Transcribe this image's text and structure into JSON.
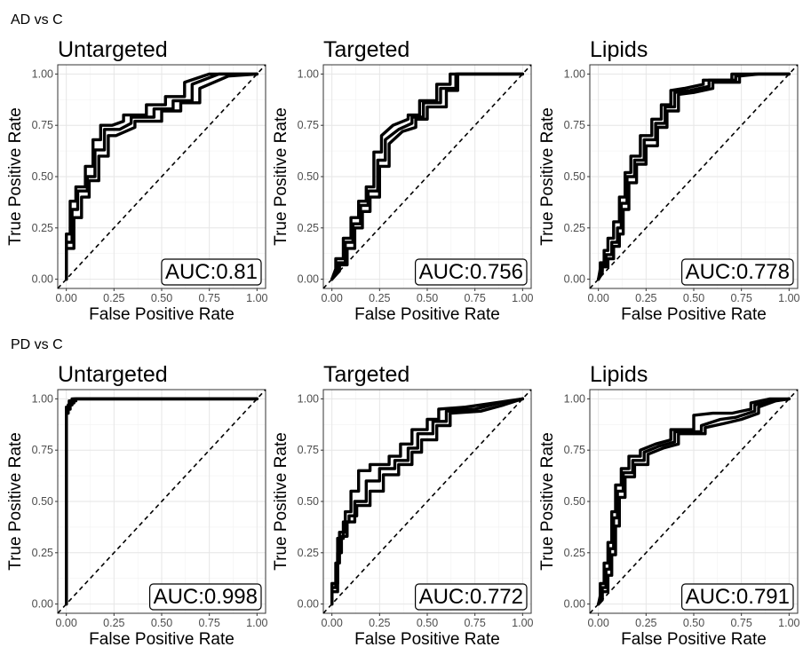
{
  "figure": {
    "row_titles": [
      "AD vs C",
      "PD vs C"
    ]
  },
  "chart_data": [
    {
      "type": "line",
      "row": "AD vs C",
      "title": "Untargeted",
      "xlabel": "False Positive Rate",
      "ylabel": "True Positive Rate",
      "xlim": [
        0,
        1
      ],
      "ylim": [
        0,
        1
      ],
      "x_ticks": [
        "0.00",
        "0.25",
        "0.50",
        "0.75",
        "1.00"
      ],
      "y_ticks": [
        "0.00",
        "0.25",
        "0.50",
        "0.75",
        "1.00"
      ],
      "grid": true,
      "annotation": "AUC:0.81",
      "series": [
        {
          "x": [
            0,
            0,
            0.02,
            0.02,
            0.05,
            0.05,
            0.1,
            0.1,
            0.14,
            0.14,
            0.18,
            0.18,
            0.24,
            0.3,
            0.3,
            0.42,
            0.42,
            0.52,
            0.52,
            0.62,
            0.62,
            0.75,
            1.0
          ],
          "y": [
            0,
            0.22,
            0.22,
            0.38,
            0.38,
            0.45,
            0.45,
            0.55,
            0.55,
            0.68,
            0.68,
            0.75,
            0.75,
            0.77,
            0.8,
            0.8,
            0.85,
            0.85,
            0.89,
            0.89,
            0.96,
            1.0,
            1.0
          ]
        },
        {
          "x": [
            0,
            0,
            0.03,
            0.03,
            0.06,
            0.06,
            0.11,
            0.11,
            0.15,
            0.15,
            0.2,
            0.2,
            0.28,
            0.34,
            0.34,
            0.46,
            0.46,
            0.56,
            0.56,
            0.66,
            0.66,
            0.8,
            1.0
          ],
          "y": [
            0,
            0.18,
            0.18,
            0.34,
            0.34,
            0.43,
            0.43,
            0.5,
            0.5,
            0.63,
            0.63,
            0.73,
            0.73,
            0.76,
            0.79,
            0.79,
            0.83,
            0.83,
            0.87,
            0.87,
            0.95,
            1.0,
            1.0
          ]
        },
        {
          "x": [
            0,
            0,
            0.04,
            0.04,
            0.08,
            0.08,
            0.12,
            0.12,
            0.17,
            0.17,
            0.22,
            0.22,
            0.26,
            0.36,
            0.36,
            0.5,
            0.5,
            0.6,
            0.6,
            0.7,
            0.7,
            0.85,
            1.0
          ],
          "y": [
            0,
            0.15,
            0.15,
            0.3,
            0.3,
            0.4,
            0.4,
            0.48,
            0.48,
            0.6,
            0.6,
            0.7,
            0.7,
            0.74,
            0.77,
            0.77,
            0.82,
            0.82,
            0.86,
            0.86,
            0.93,
            0.99,
            1.0
          ]
        }
      ]
    },
    {
      "type": "line",
      "row": "AD vs C",
      "title": "Targeted",
      "xlabel": "False Positive Rate",
      "ylabel": "True Positive Rate",
      "xlim": [
        0,
        1
      ],
      "ylim": [
        0,
        1
      ],
      "x_ticks": [
        "0.00",
        "0.25",
        "0.50",
        "0.75",
        "1.00"
      ],
      "y_ticks": [
        "0.00",
        "0.25",
        "0.50",
        "0.75",
        "1.00"
      ],
      "grid": true,
      "annotation": "AUC:0.756",
      "series": [
        {
          "x": [
            0,
            0.02,
            0.02,
            0.06,
            0.06,
            0.1,
            0.1,
            0.14,
            0.14,
            0.18,
            0.18,
            0.22,
            0.22,
            0.26,
            0.26,
            0.32,
            0.4,
            0.4,
            0.46,
            0.46,
            0.55,
            0.55,
            0.62,
            0.62,
            1.0
          ],
          "y": [
            0,
            0.05,
            0.1,
            0.1,
            0.2,
            0.2,
            0.3,
            0.3,
            0.38,
            0.38,
            0.45,
            0.45,
            0.62,
            0.62,
            0.7,
            0.75,
            0.78,
            0.8,
            0.8,
            0.87,
            0.87,
            0.95,
            0.95,
            1.0,
            1.0
          ]
        },
        {
          "x": [
            0,
            0.03,
            0.03,
            0.07,
            0.07,
            0.11,
            0.11,
            0.15,
            0.15,
            0.19,
            0.19,
            0.24,
            0.24,
            0.28,
            0.28,
            0.35,
            0.42,
            0.42,
            0.48,
            0.48,
            0.57,
            0.57,
            0.65,
            0.65,
            1.0
          ],
          "y": [
            0,
            0.05,
            0.08,
            0.08,
            0.18,
            0.18,
            0.27,
            0.27,
            0.36,
            0.36,
            0.43,
            0.43,
            0.58,
            0.58,
            0.68,
            0.73,
            0.76,
            0.79,
            0.79,
            0.86,
            0.86,
            0.93,
            0.93,
            1.0,
            1.0
          ]
        },
        {
          "x": [
            0,
            0.04,
            0.04,
            0.08,
            0.08,
            0.12,
            0.12,
            0.16,
            0.16,
            0.2,
            0.2,
            0.25,
            0.25,
            0.3,
            0.3,
            0.37,
            0.44,
            0.44,
            0.5,
            0.5,
            0.6,
            0.6,
            0.66,
            0.66,
            1.0
          ],
          "y": [
            0,
            0.04,
            0.07,
            0.07,
            0.15,
            0.15,
            0.25,
            0.25,
            0.33,
            0.33,
            0.4,
            0.4,
            0.55,
            0.55,
            0.66,
            0.72,
            0.74,
            0.78,
            0.78,
            0.84,
            0.84,
            0.92,
            0.92,
            1.0,
            1.0
          ]
        }
      ]
    },
    {
      "type": "line",
      "row": "AD vs C",
      "title": "Lipids",
      "xlabel": "False Positive Rate",
      "ylabel": "True Positive Rate",
      "xlim": [
        0,
        1
      ],
      "ylim": [
        0,
        1
      ],
      "x_ticks": [
        "0.00",
        "0.25",
        "0.50",
        "0.75",
        "1.00"
      ],
      "y_ticks": [
        "0.00",
        "0.25",
        "0.50",
        "0.75",
        "1.00"
      ],
      "grid": true,
      "annotation": "AUC:0.778",
      "series": [
        {
          "x": [
            0,
            0.01,
            0.01,
            0.03,
            0.03,
            0.05,
            0.05,
            0.08,
            0.08,
            0.11,
            0.11,
            0.14,
            0.14,
            0.17,
            0.17,
            0.22,
            0.22,
            0.28,
            0.28,
            0.33,
            0.33,
            0.38,
            0.38,
            0.45,
            0.55,
            0.55,
            0.7,
            0.7,
            0.8,
            1.0
          ],
          "y": [
            0,
            0.05,
            0.08,
            0.08,
            0.14,
            0.14,
            0.2,
            0.2,
            0.28,
            0.28,
            0.4,
            0.4,
            0.52,
            0.52,
            0.6,
            0.6,
            0.7,
            0.7,
            0.78,
            0.78,
            0.85,
            0.85,
            0.92,
            0.93,
            0.95,
            0.97,
            0.97,
            1.0,
            1.0,
            1.0
          ]
        },
        {
          "x": [
            0,
            0.02,
            0.02,
            0.04,
            0.04,
            0.07,
            0.07,
            0.1,
            0.1,
            0.12,
            0.12,
            0.15,
            0.15,
            0.19,
            0.19,
            0.24,
            0.24,
            0.3,
            0.3,
            0.35,
            0.35,
            0.4,
            0.4,
            0.48,
            0.58,
            0.58,
            0.72,
            0.72,
            0.82,
            1.0
          ],
          "y": [
            0,
            0.04,
            0.07,
            0.07,
            0.12,
            0.12,
            0.18,
            0.18,
            0.25,
            0.25,
            0.37,
            0.37,
            0.5,
            0.5,
            0.58,
            0.58,
            0.68,
            0.68,
            0.76,
            0.76,
            0.84,
            0.84,
            0.91,
            0.92,
            0.94,
            0.97,
            0.97,
            0.99,
            1.0,
            1.0
          ]
        },
        {
          "x": [
            0,
            0.02,
            0.02,
            0.05,
            0.05,
            0.08,
            0.08,
            0.11,
            0.11,
            0.13,
            0.13,
            0.16,
            0.16,
            0.2,
            0.2,
            0.25,
            0.25,
            0.31,
            0.31,
            0.36,
            0.36,
            0.42,
            0.42,
            0.5,
            0.6,
            0.6,
            0.74,
            0.74,
            0.84,
            1.0
          ],
          "y": [
            0,
            0.03,
            0.06,
            0.06,
            0.1,
            0.1,
            0.16,
            0.16,
            0.22,
            0.22,
            0.34,
            0.34,
            0.47,
            0.47,
            0.56,
            0.56,
            0.65,
            0.65,
            0.74,
            0.74,
            0.82,
            0.82,
            0.9,
            0.91,
            0.93,
            0.96,
            0.96,
            0.99,
            1.0,
            1.0
          ]
        }
      ]
    },
    {
      "type": "line",
      "row": "PD vs C",
      "title": "Untargeted",
      "xlabel": "False Positive Rate",
      "ylabel": "True Positive Rate",
      "xlim": [
        0,
        1
      ],
      "ylim": [
        0,
        1
      ],
      "x_ticks": [
        "0.00",
        "0.25",
        "0.50",
        "0.75",
        "1.00"
      ],
      "y_ticks": [
        "0.00",
        "0.25",
        "0.50",
        "0.75",
        "1.00"
      ],
      "grid": true,
      "annotation": "AUC:0.998",
      "series": [
        {
          "x": [
            0,
            0,
            0.01,
            0.01,
            0.03,
            0.03,
            1.0
          ],
          "y": [
            0,
            0.93,
            0.93,
            0.97,
            0.97,
            1.0,
            1.0
          ]
        },
        {
          "x": [
            0,
            0,
            0.02,
            0.02,
            0.04,
            0.04,
            1.0
          ],
          "y": [
            0,
            0.95,
            0.95,
            0.98,
            0.98,
            1.0,
            1.0
          ]
        },
        {
          "x": [
            0,
            0,
            0.015,
            0.015,
            0.05,
            0.05,
            1.0
          ],
          "y": [
            0,
            0.96,
            0.96,
            0.99,
            0.99,
            1.0,
            1.0
          ]
        }
      ]
    },
    {
      "type": "line",
      "row": "PD vs C",
      "title": "Targeted",
      "xlabel": "False Positive Rate",
      "ylabel": "True Positive Rate",
      "xlim": [
        0,
        1
      ],
      "ylim": [
        0,
        1
      ],
      "x_ticks": [
        "0.00",
        "0.25",
        "0.50",
        "0.75",
        "1.00"
      ],
      "y_ticks": [
        "0.00",
        "0.25",
        "0.50",
        "0.75",
        "1.00"
      ],
      "grid": true,
      "annotation": "AUC:0.772",
      "series": [
        {
          "x": [
            0,
            0,
            0.02,
            0.02,
            0.04,
            0.04,
            0.07,
            0.07,
            0.1,
            0.1,
            0.14,
            0.14,
            0.2,
            0.2,
            0.3,
            0.3,
            0.36,
            0.36,
            0.42,
            0.42,
            0.5,
            0.5,
            0.56,
            0.56,
            0.7,
            0.85,
            1.0
          ],
          "y": [
            0,
            0.08,
            0.08,
            0.2,
            0.2,
            0.35,
            0.35,
            0.45,
            0.45,
            0.55,
            0.55,
            0.65,
            0.65,
            0.68,
            0.68,
            0.72,
            0.72,
            0.78,
            0.78,
            0.85,
            0.85,
            0.9,
            0.9,
            0.95,
            0.96,
            0.98,
            1.0
          ]
        },
        {
          "x": [
            0,
            0,
            0.03,
            0.03,
            0.05,
            0.05,
            0.08,
            0.08,
            0.12,
            0.12,
            0.18,
            0.18,
            0.25,
            0.25,
            0.33,
            0.33,
            0.4,
            0.4,
            0.45,
            0.45,
            0.53,
            0.53,
            0.6,
            0.6,
            0.75,
            0.88,
            1.0
          ],
          "y": [
            0,
            0.1,
            0.1,
            0.25,
            0.25,
            0.33,
            0.33,
            0.4,
            0.4,
            0.5,
            0.5,
            0.6,
            0.6,
            0.66,
            0.66,
            0.7,
            0.7,
            0.76,
            0.76,
            0.83,
            0.83,
            0.89,
            0.89,
            0.94,
            0.95,
            0.98,
            1.0
          ]
        },
        {
          "x": [
            0,
            0,
            0.03,
            0.03,
            0.06,
            0.06,
            0.09,
            0.09,
            0.13,
            0.13,
            0.2,
            0.2,
            0.27,
            0.27,
            0.35,
            0.35,
            0.42,
            0.42,
            0.47,
            0.47,
            0.55,
            0.55,
            0.62,
            0.62,
            0.78,
            0.9,
            1.0
          ],
          "y": [
            0,
            0.06,
            0.06,
            0.32,
            0.32,
            0.4,
            0.4,
            0.43,
            0.43,
            0.48,
            0.48,
            0.55,
            0.55,
            0.63,
            0.63,
            0.68,
            0.68,
            0.74,
            0.74,
            0.8,
            0.8,
            0.87,
            0.87,
            0.93,
            0.94,
            0.97,
            1.0
          ]
        }
      ]
    },
    {
      "type": "line",
      "row": "PD vs C",
      "title": "Lipids",
      "xlabel": "False Positive Rate",
      "ylabel": "True Positive Rate",
      "xlim": [
        0,
        1
      ],
      "ylim": [
        0,
        1
      ],
      "x_ticks": [
        "0.00",
        "0.25",
        "0.50",
        "0.75",
        "1.00"
      ],
      "y_ticks": [
        "0.00",
        "0.25",
        "0.50",
        "0.75",
        "1.00"
      ],
      "grid": true,
      "annotation": "AUC:0.791",
      "series": [
        {
          "x": [
            0,
            0.01,
            0.01,
            0.03,
            0.03,
            0.05,
            0.05,
            0.07,
            0.07,
            0.09,
            0.09,
            0.12,
            0.12,
            0.16,
            0.16,
            0.22,
            0.22,
            0.3,
            0.38,
            0.38,
            0.5,
            0.5,
            0.6,
            0.7,
            0.8,
            0.8,
            0.9,
            1.0
          ],
          "y": [
            0,
            0.04,
            0.1,
            0.1,
            0.2,
            0.2,
            0.3,
            0.3,
            0.45,
            0.45,
            0.58,
            0.58,
            0.66,
            0.66,
            0.72,
            0.72,
            0.75,
            0.78,
            0.8,
            0.85,
            0.85,
            0.92,
            0.93,
            0.93,
            0.95,
            0.98,
            1.0,
            1.0
          ]
        },
        {
          "x": [
            0,
            0.02,
            0.02,
            0.04,
            0.04,
            0.06,
            0.06,
            0.08,
            0.08,
            0.1,
            0.1,
            0.13,
            0.13,
            0.18,
            0.18,
            0.24,
            0.24,
            0.32,
            0.4,
            0.4,
            0.54,
            0.54,
            0.64,
            0.72,
            0.82,
            0.82,
            0.92,
            1.0
          ],
          "y": [
            0,
            0.03,
            0.08,
            0.08,
            0.17,
            0.17,
            0.27,
            0.27,
            0.42,
            0.42,
            0.55,
            0.55,
            0.64,
            0.64,
            0.7,
            0.7,
            0.74,
            0.77,
            0.79,
            0.84,
            0.84,
            0.87,
            0.9,
            0.91,
            0.94,
            0.97,
            0.99,
            1.0
          ]
        },
        {
          "x": [
            0,
            0.02,
            0.02,
            0.05,
            0.05,
            0.07,
            0.07,
            0.09,
            0.09,
            0.11,
            0.11,
            0.14,
            0.14,
            0.19,
            0.19,
            0.26,
            0.26,
            0.34,
            0.42,
            0.42,
            0.56,
            0.56,
            0.66,
            0.75,
            0.84,
            0.84,
            0.93,
            1.0
          ],
          "y": [
            0,
            0.02,
            0.06,
            0.06,
            0.14,
            0.14,
            0.24,
            0.24,
            0.38,
            0.38,
            0.52,
            0.52,
            0.62,
            0.62,
            0.68,
            0.68,
            0.73,
            0.76,
            0.78,
            0.83,
            0.83,
            0.86,
            0.88,
            0.9,
            0.93,
            0.96,
            0.99,
            1.0
          ]
        }
      ]
    }
  ]
}
